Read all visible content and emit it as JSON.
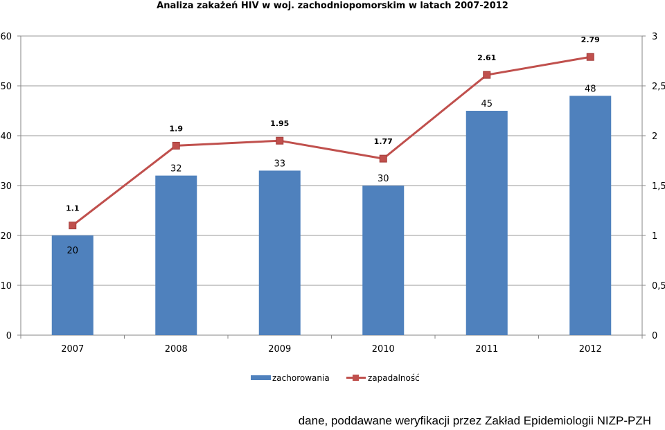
{
  "chart_data": {
    "type": "bar+line",
    "title": "Analiza zakażeń HIV w woj. zachodniopomorskim w latach 2007-2012",
    "categories": [
      "2007",
      "2008",
      "2009",
      "2010",
      "2011",
      "2012"
    ],
    "series": [
      {
        "name": "zachorowania",
        "type": "bar",
        "axis": "left",
        "values": [
          20,
          32,
          33,
          30,
          45,
          48
        ],
        "color": "#4f81bd",
        "labels": [
          "20",
          "32",
          "33",
          "30",
          "45",
          "48"
        ]
      },
      {
        "name": "zapadalność",
        "type": "line",
        "axis": "right",
        "values": [
          1.1,
          1.9,
          1.95,
          1.77,
          2.61,
          2.79
        ],
        "color": "#c0504d",
        "labels": [
          "1.1",
          "1.9",
          "1.95",
          "1.77",
          "2.61",
          "2.79"
        ]
      }
    ],
    "y_left": {
      "lim": [
        0,
        60
      ],
      "ticks": [
        "0",
        "10",
        "20",
        "30",
        "40",
        "50",
        "60"
      ]
    },
    "y_right": {
      "lim": [
        0,
        3
      ],
      "ticks": [
        "0",
        "0,5",
        "1",
        "1,5",
        "2",
        "2,5",
        "3"
      ]
    },
    "grid": true,
    "legend_position": "bottom"
  },
  "footnote": "dane, poddawane weryfikacji przez Zakład Epidemiologii NIZP-PZH"
}
